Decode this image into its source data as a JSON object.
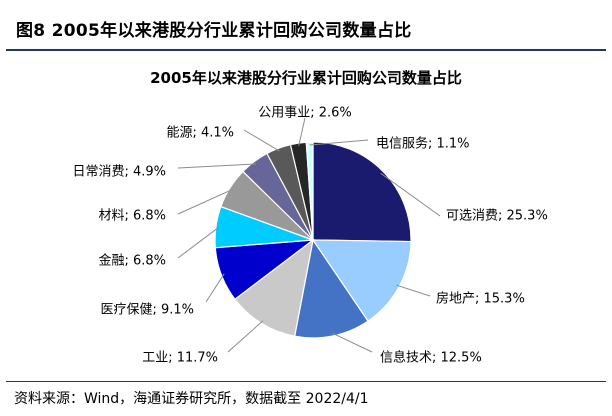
{
  "figure": {
    "number_title": "图8 2005年以来港股分行业累计回购公司数量占比",
    "source": "资料来源：Wind，海通证券研究所，数据截至 2022/4/1"
  },
  "chart_data": {
    "type": "pie",
    "title": "2005年以来港股分行业累计回购公司数量占比",
    "unit": "%",
    "start_angle_deg": 0,
    "direction": "clockwise",
    "slices": [
      {
        "label": "可选消费",
        "value": 25.3,
        "display": "可选消费; 25.3%",
        "color": "#1a1a6e"
      },
      {
        "label": "房地产",
        "value": 15.3,
        "display": "房地产; 15.3%",
        "color": "#99ccff"
      },
      {
        "label": "信息技术",
        "value": 12.5,
        "display": "信息技术; 12.5%",
        "color": "#4472c4"
      },
      {
        "label": "工业",
        "value": 11.7,
        "display": "工业; 11.7%",
        "color": "#c9c9c9"
      },
      {
        "label": "医疗保健",
        "value": 9.1,
        "display": "医疗保健; 9.1%",
        "color": "#0000cc"
      },
      {
        "label": "金融",
        "value": 6.8,
        "display": "金融; 6.8%",
        "color": "#00ccff"
      },
      {
        "label": "材料",
        "value": 6.8,
        "display": "材料; 6.8%",
        "color": "#999999"
      },
      {
        "label": "日常消费",
        "value": 4.9,
        "display": "日常消费; 4.9%",
        "color": "#666699"
      },
      {
        "label": "能源",
        "value": 4.1,
        "display": "能源; 4.1%",
        "color": "#595959"
      },
      {
        "label": "公用事业",
        "value": 2.6,
        "display": "公用事业; 2.6%",
        "color": "#262626"
      },
      {
        "label": "电信服务",
        "value": 1.1,
        "display": "电信服务; 1.1%",
        "color": "#ccffff"
      }
    ]
  }
}
